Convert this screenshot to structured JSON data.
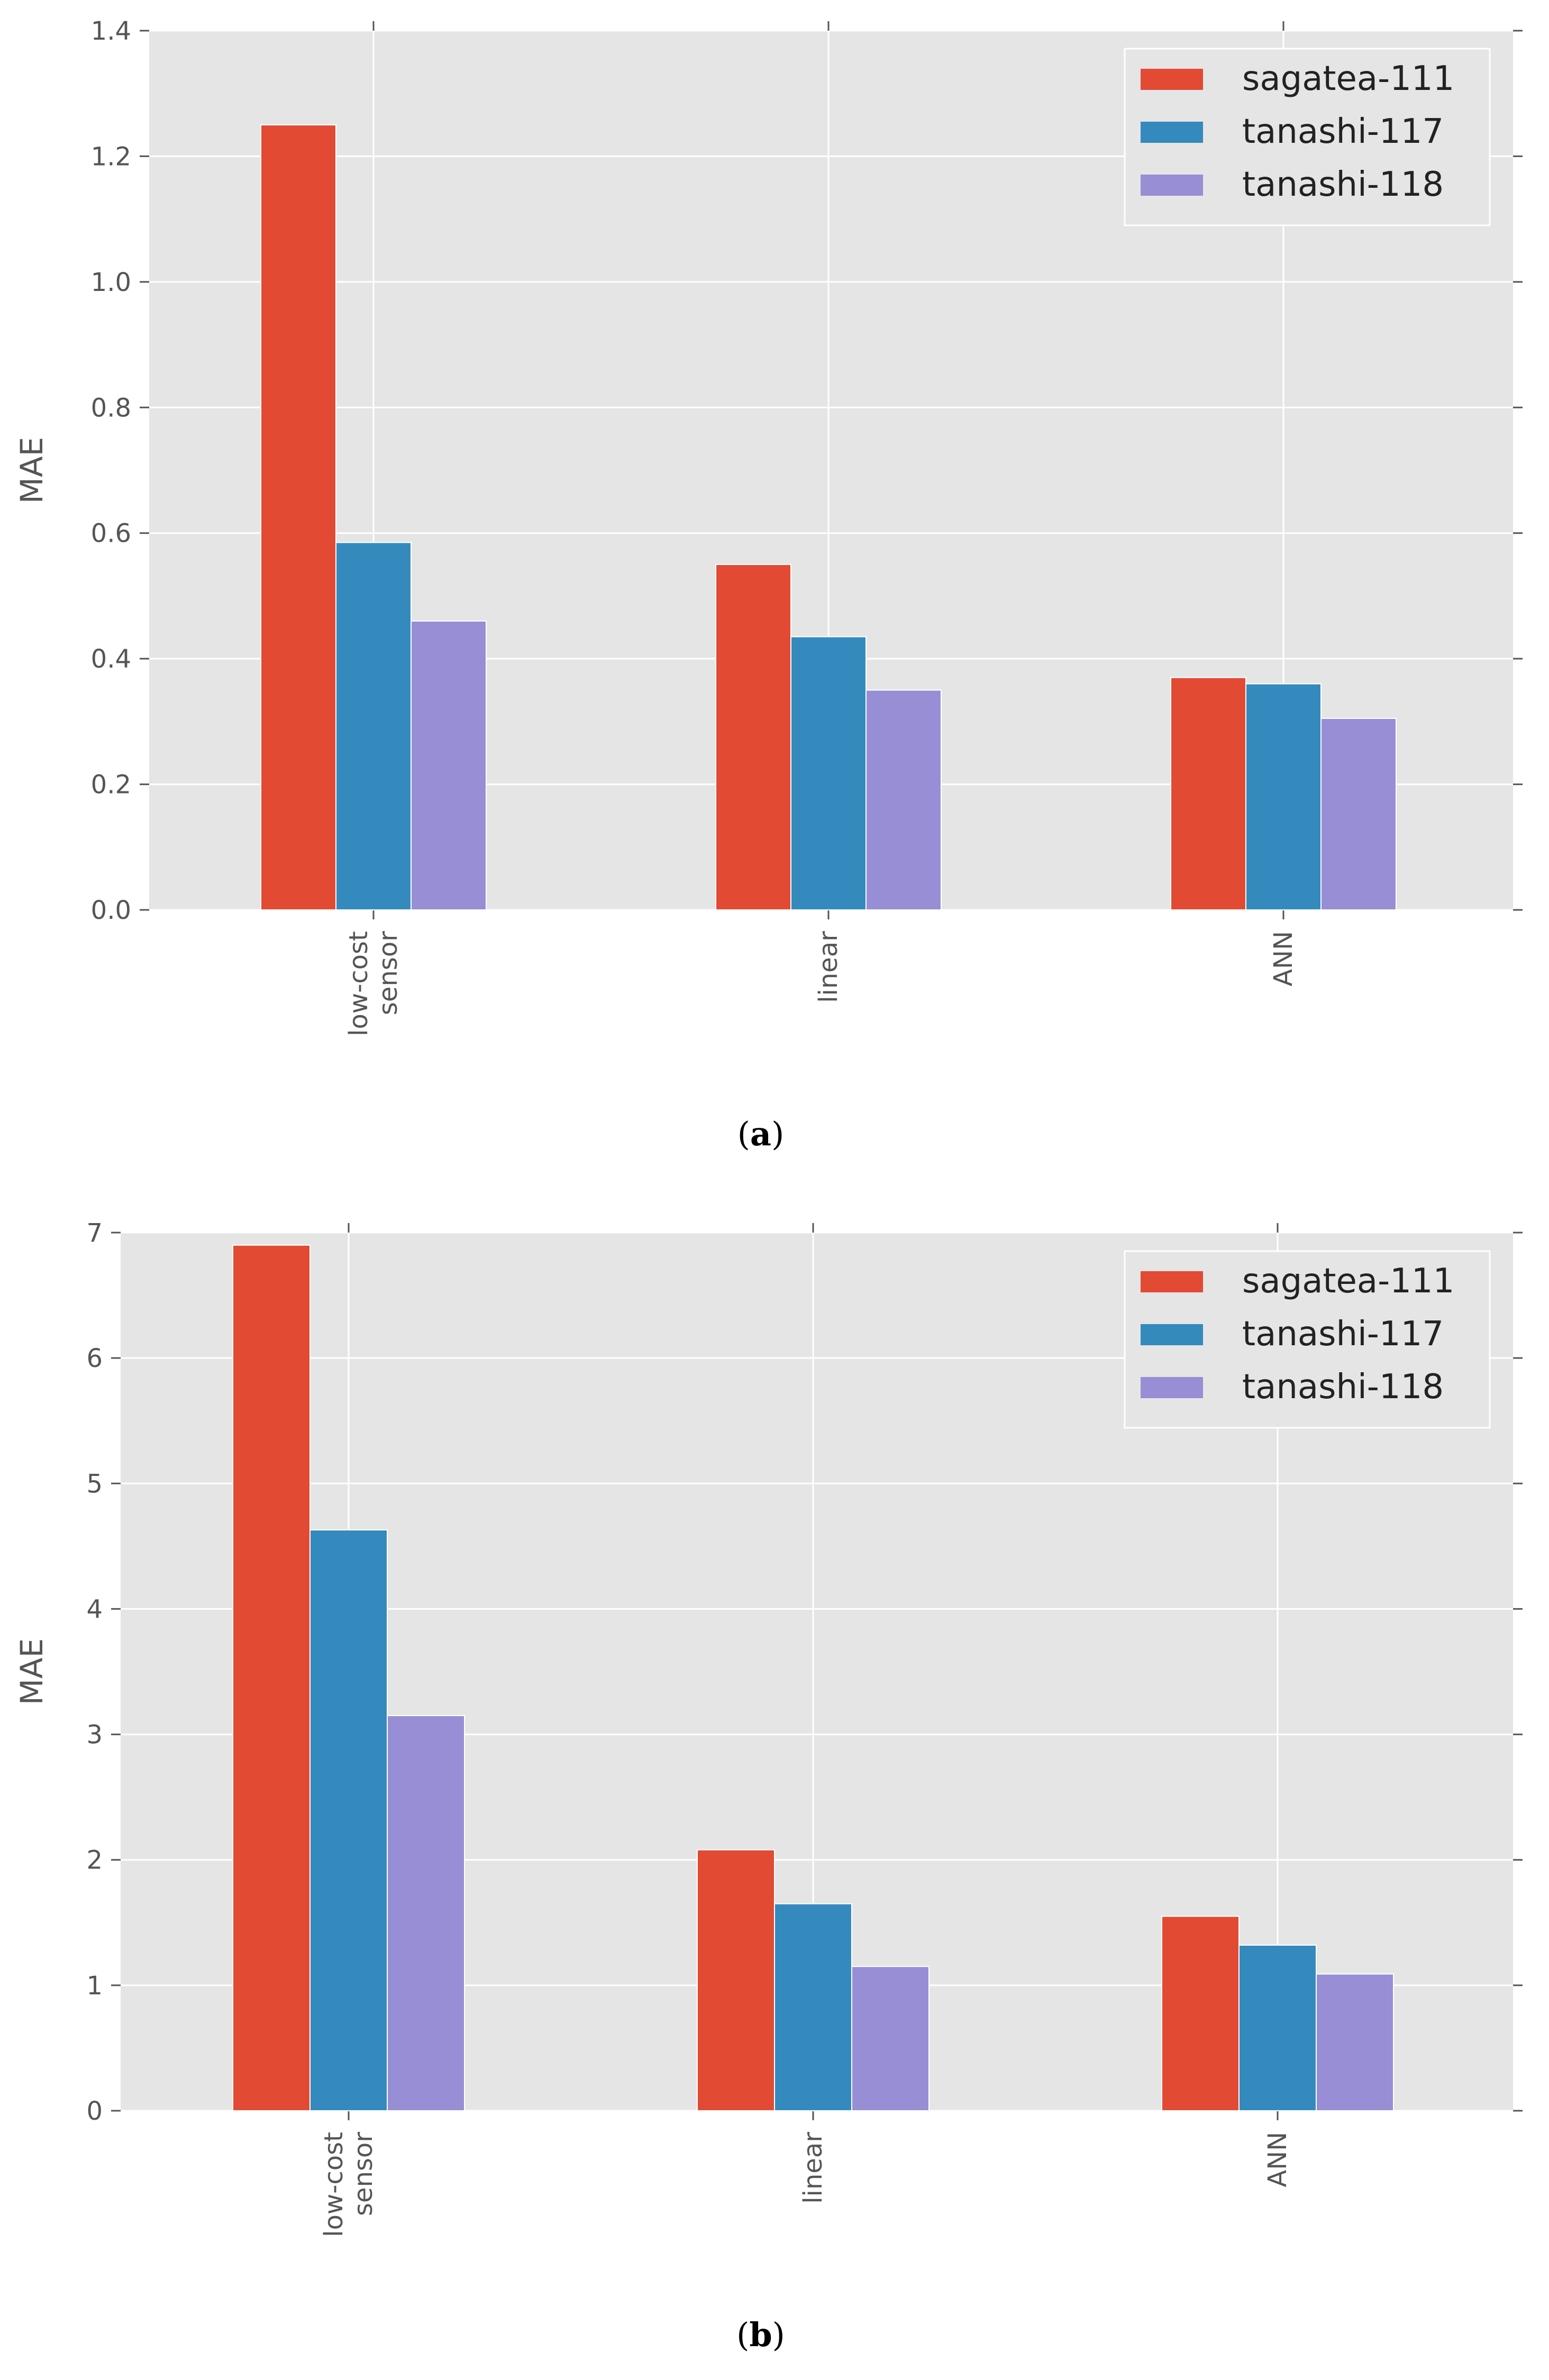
{
  "chart_data": [
    {
      "type": "bar",
      "caption": "(a)",
      "caption_letter": "a",
      "ylabel": "MAE",
      "ylim": [
        0,
        1.4
      ],
      "yticks": [
        "0.0",
        "0.2",
        "0.4",
        "0.6",
        "0.8",
        "1.0",
        "1.2",
        "1.4"
      ],
      "categories": [
        "low-cost\nsensor",
        "linear",
        "ANN"
      ],
      "grid": true,
      "legend_placement": "top-right",
      "series": [
        {
          "name": "sagatea-111",
          "color": "#E24A33",
          "values": [
            1.25,
            0.55,
            0.37
          ]
        },
        {
          "name": "tanashi-117",
          "color": "#348ABD",
          "values": [
            0.585,
            0.435,
            0.36
          ]
        },
        {
          "name": "tanashi-118",
          "color": "#988ED5",
          "values": [
            0.46,
            0.35,
            0.305
          ]
        }
      ]
    },
    {
      "type": "bar",
      "caption": "(b)",
      "caption_letter": "b",
      "ylabel": "MAE",
      "ylim": [
        0,
        7
      ],
      "yticks": [
        "0",
        "1",
        "2",
        "3",
        "4",
        "5",
        "6",
        "7"
      ],
      "categories": [
        "low-cost\nsensor",
        "linear",
        "ANN"
      ],
      "grid": true,
      "legend_placement": "top-right",
      "series": [
        {
          "name": "sagatea-111",
          "color": "#E24A33",
          "values": [
            6.9,
            2.08,
            1.55
          ]
        },
        {
          "name": "tanashi-117",
          "color": "#348ABD",
          "values": [
            4.63,
            1.65,
            1.32
          ]
        },
        {
          "name": "tanashi-118",
          "color": "#988ED5",
          "values": [
            3.15,
            1.15,
            1.09
          ]
        }
      ]
    }
  ],
  "style": {
    "plot_background": "#E5E5E5",
    "grid_color": "#FFFFFF"
  }
}
